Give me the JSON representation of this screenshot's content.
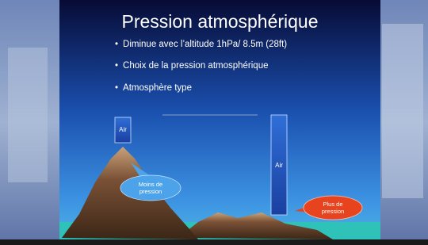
{
  "slide": {
    "title": "Pression atmosphérique",
    "bullets": [
      "Diminue avec l’altitude  1hPa/ 8.5m (28ft)",
      "Choix de la pression atmosphérique",
      "Atmosphère type"
    ],
    "air_columns": [
      "Air",
      "Air"
    ],
    "callouts": [
      "Moins de pression",
      "Plus de pression"
    ]
  }
}
